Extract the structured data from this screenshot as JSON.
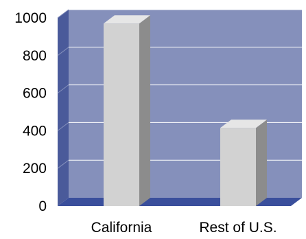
{
  "chart_data": {
    "type": "bar",
    "title": "",
    "xlabel": "",
    "ylabel": "",
    "categories": [
      "California",
      "Rest of U.S."
    ],
    "values": [
      970,
      415
    ],
    "ylim": [
      0,
      1000
    ],
    "y_ticks": [
      "0",
      "200",
      "400",
      "600",
      "800",
      "1000"
    ],
    "y_tick_values": [
      0,
      200,
      400,
      600,
      800,
      1000
    ],
    "grid": true,
    "legend": "none",
    "style": "3d"
  },
  "colors": {
    "plot_back_wall": "#8590bb",
    "plot_side_wall": "#4a5a9a",
    "plot_floor": "#3a4f9c",
    "gridline": "#ffffff",
    "bar_front": "#d2d2d2",
    "bar_side": "#8c8c8c",
    "bar_top": "#e6e6e6"
  }
}
